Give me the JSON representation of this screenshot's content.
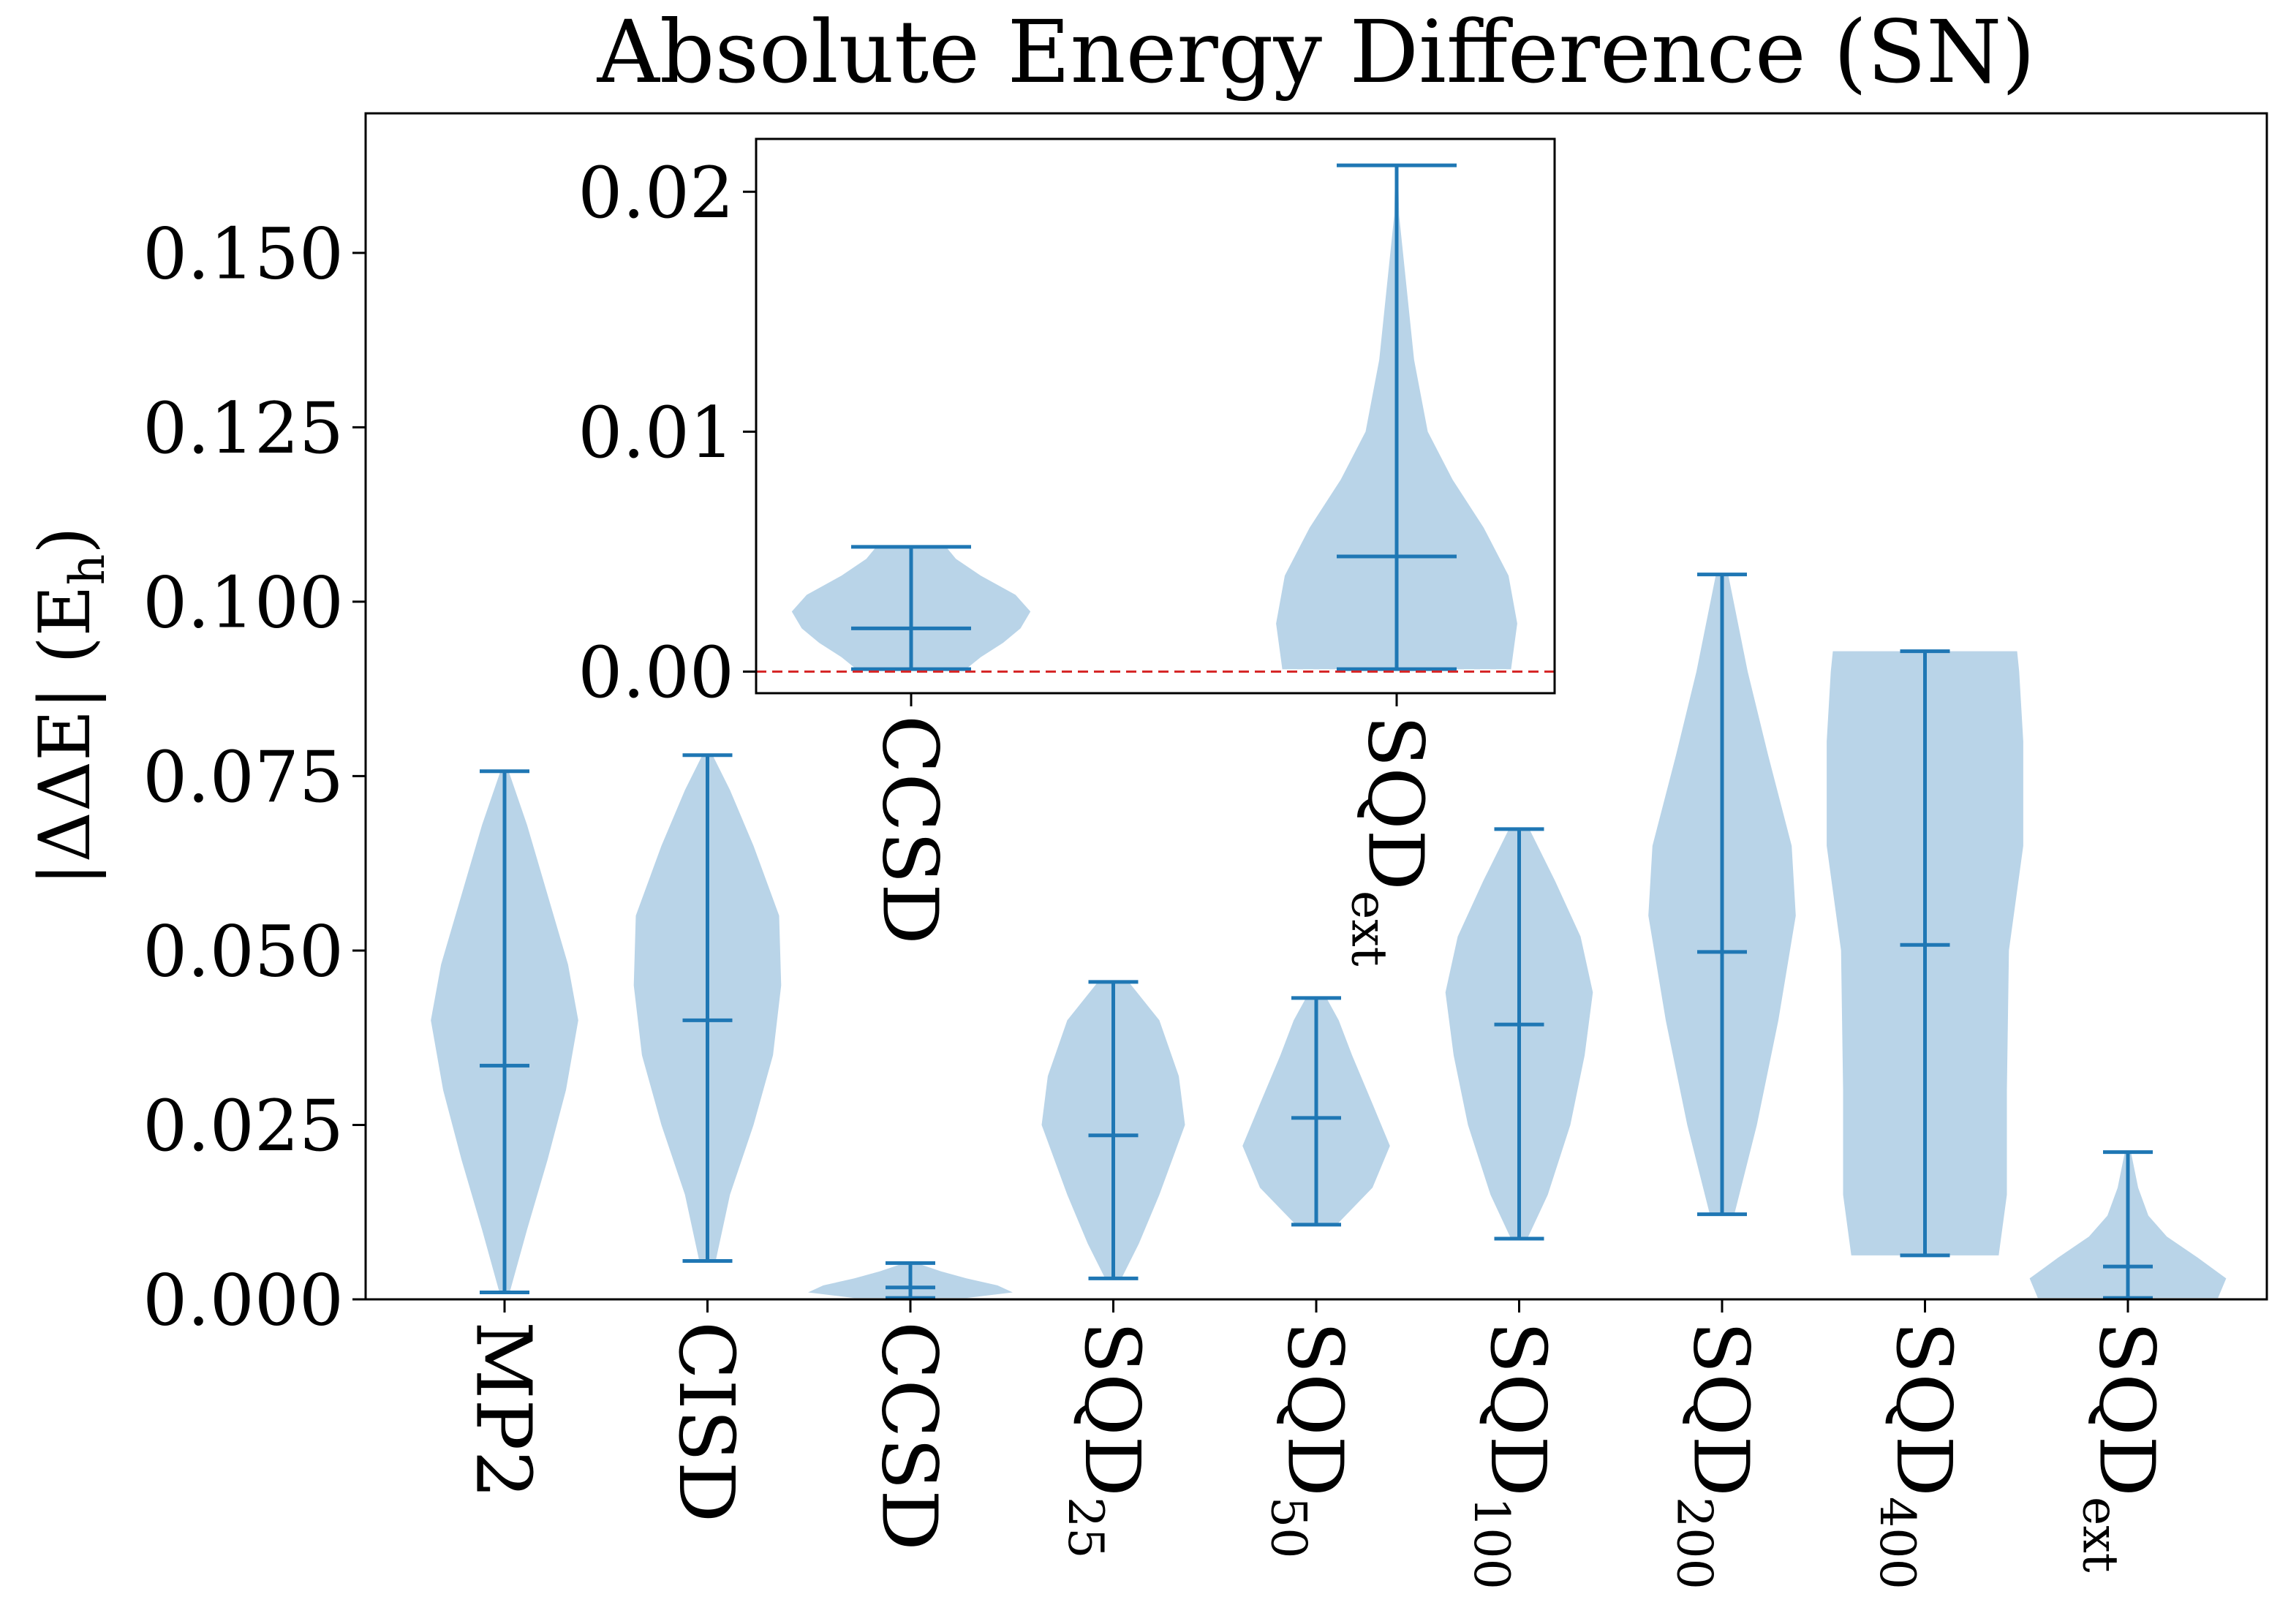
{
  "chart_data": [
    {
      "type": "violin",
      "title": "Absolute Energy Difference (SN)",
      "ylabel": "|ΔΔE| (E",
      "ylabel_sub": "h",
      "ylabel_close": ")",
      "ylim": [
        0,
        0.17
      ],
      "yticks": [
        0.0,
        0.025,
        0.05,
        0.075,
        0.1,
        0.125,
        0.15
      ],
      "ytick_labels": [
        "0.000",
        "0.025",
        "0.050",
        "0.075",
        "0.100",
        "0.125",
        "0.150"
      ],
      "reference_line": 0,
      "colors": {
        "body": "#b9d4e8",
        "line": "#1f77b4",
        "reference": "#d62728"
      },
      "categories": [
        {
          "label": "MP2",
          "sub": "",
          "min": 0.001,
          "mean": 0.0335,
          "max": 0.0757,
          "density": [
            [
              0.001,
              0.05
            ],
            [
              0.01,
              0.22
            ],
            [
              0.02,
              0.42
            ],
            [
              0.03,
              0.6
            ],
            [
              0.04,
              0.72
            ],
            [
              0.048,
              0.62
            ],
            [
              0.058,
              0.42
            ],
            [
              0.068,
              0.22
            ],
            [
              0.0757,
              0.04
            ]
          ]
        },
        {
          "label": "CISD",
          "sub": "",
          "min": 0.0055,
          "mean": 0.04,
          "max": 0.078,
          "density": [
            [
              0.0055,
              0.08
            ],
            [
              0.015,
              0.22
            ],
            [
              0.025,
              0.45
            ],
            [
              0.035,
              0.64
            ],
            [
              0.045,
              0.72
            ],
            [
              0.055,
              0.7
            ],
            [
              0.065,
              0.45
            ],
            [
              0.073,
              0.22
            ],
            [
              0.078,
              0.05
            ]
          ]
        },
        {
          "label": "CCSD",
          "sub": "",
          "min": 0.0002,
          "mean": 0.0017,
          "max": 0.0052,
          "density": [
            [
              0.0002,
              0.55
            ],
            [
              0.001,
              1.0
            ],
            [
              0.002,
              0.85
            ],
            [
              0.003,
              0.55
            ],
            [
              0.004,
              0.3
            ],
            [
              0.0052,
              0.06
            ]
          ]
        },
        {
          "label": "SQD",
          "sub": "25",
          "min": 0.003,
          "mean": 0.0235,
          "max": 0.0455,
          "density": [
            [
              0.003,
              0.08
            ],
            [
              0.008,
              0.25
            ],
            [
              0.015,
              0.45
            ],
            [
              0.025,
              0.7
            ],
            [
              0.032,
              0.64
            ],
            [
              0.04,
              0.45
            ],
            [
              0.0455,
              0.15
            ]
          ]
        },
        {
          "label": "SQD",
          "sub": "50",
          "min": 0.0107,
          "mean": 0.026,
          "max": 0.0432,
          "density": [
            [
              0.0107,
              0.2
            ],
            [
              0.016,
              0.55
            ],
            [
              0.022,
              0.72
            ],
            [
              0.028,
              0.55
            ],
            [
              0.035,
              0.35
            ],
            [
              0.04,
              0.22
            ],
            [
              0.0432,
              0.1
            ]
          ]
        },
        {
          "label": "SQD",
          "sub": "100",
          "min": 0.0087,
          "mean": 0.0394,
          "max": 0.0674,
          "density": [
            [
              0.0087,
              0.08
            ],
            [
              0.015,
              0.28
            ],
            [
              0.025,
              0.5
            ],
            [
              0.035,
              0.64
            ],
            [
              0.044,
              0.72
            ],
            [
              0.052,
              0.6
            ],
            [
              0.06,
              0.35
            ],
            [
              0.0674,
              0.1
            ]
          ]
        },
        {
          "label": "SQD",
          "sub": "200",
          "min": 0.0122,
          "mean": 0.0498,
          "max": 0.1039,
          "density": [
            [
              0.0122,
              0.12
            ],
            [
              0.025,
              0.34
            ],
            [
              0.04,
              0.55
            ],
            [
              0.055,
              0.72
            ],
            [
              0.065,
              0.68
            ],
            [
              0.078,
              0.45
            ],
            [
              0.09,
              0.25
            ],
            [
              0.1039,
              0.06
            ]
          ]
        },
        {
          "label": "SQD",
          "sub": "400",
          "min": 0.0063,
          "mean": 0.0508,
          "max": 0.0929,
          "density": [
            [
              0.0063,
              0.72
            ],
            [
              0.015,
              0.8
            ],
            [
              0.03,
              0.8
            ],
            [
              0.05,
              0.82
            ],
            [
              0.065,
              0.96
            ],
            [
              0.08,
              0.96
            ],
            [
              0.09,
              0.92
            ],
            [
              0.0929,
              0.9
            ]
          ]
        },
        {
          "label": "SQD",
          "sub": "ext",
          "min": 0.0002,
          "mean": 0.0047,
          "max": 0.0211,
          "density": [
            [
              0.0002,
              0.88
            ],
            [
              0.003,
              0.96
            ],
            [
              0.006,
              0.68
            ],
            [
              0.009,
              0.38
            ],
            [
              0.012,
              0.2
            ],
            [
              0.016,
              0.1
            ],
            [
              0.0211,
              0.03
            ]
          ]
        }
      ]
    },
    {
      "type": "violin",
      "title": "",
      "ylim": [
        -0.0009,
        0.0222
      ],
      "yticks": [
        0.0,
        0.01,
        0.02
      ],
      "ytick_labels": [
        "0.00",
        "0.01",
        "0.02"
      ],
      "reference_line": 0,
      "colors": {
        "body": "#b9d4e8",
        "line": "#1f77b4",
        "reference": "#d62728"
      },
      "categories": [
        {
          "label": "CCSD",
          "sub": "",
          "min": 0.0001,
          "mean": 0.0018,
          "max": 0.0052,
          "density": [
            [
              0.0001,
              0.44
            ],
            [
              0.0006,
              0.56
            ],
            [
              0.0012,
              0.74
            ],
            [
              0.0018,
              0.88
            ],
            [
              0.0025,
              0.96
            ],
            [
              0.0032,
              0.84
            ],
            [
              0.004,
              0.56
            ],
            [
              0.0047,
              0.36
            ],
            [
              0.0052,
              0.28
            ]
          ]
        },
        {
          "label": "SQD",
          "sub": "ext",
          "min": 0.0001,
          "mean": 0.0048,
          "max": 0.0211,
          "density": [
            [
              0.0001,
              0.92
            ],
            [
              0.002,
              0.97
            ],
            [
              0.004,
              0.9
            ],
            [
              0.006,
              0.7
            ],
            [
              0.008,
              0.45
            ],
            [
              0.01,
              0.25
            ],
            [
              0.013,
              0.14
            ],
            [
              0.016,
              0.08
            ],
            [
              0.019,
              0.02
            ],
            [
              0.0211,
              0.01
            ]
          ]
        }
      ]
    }
  ]
}
